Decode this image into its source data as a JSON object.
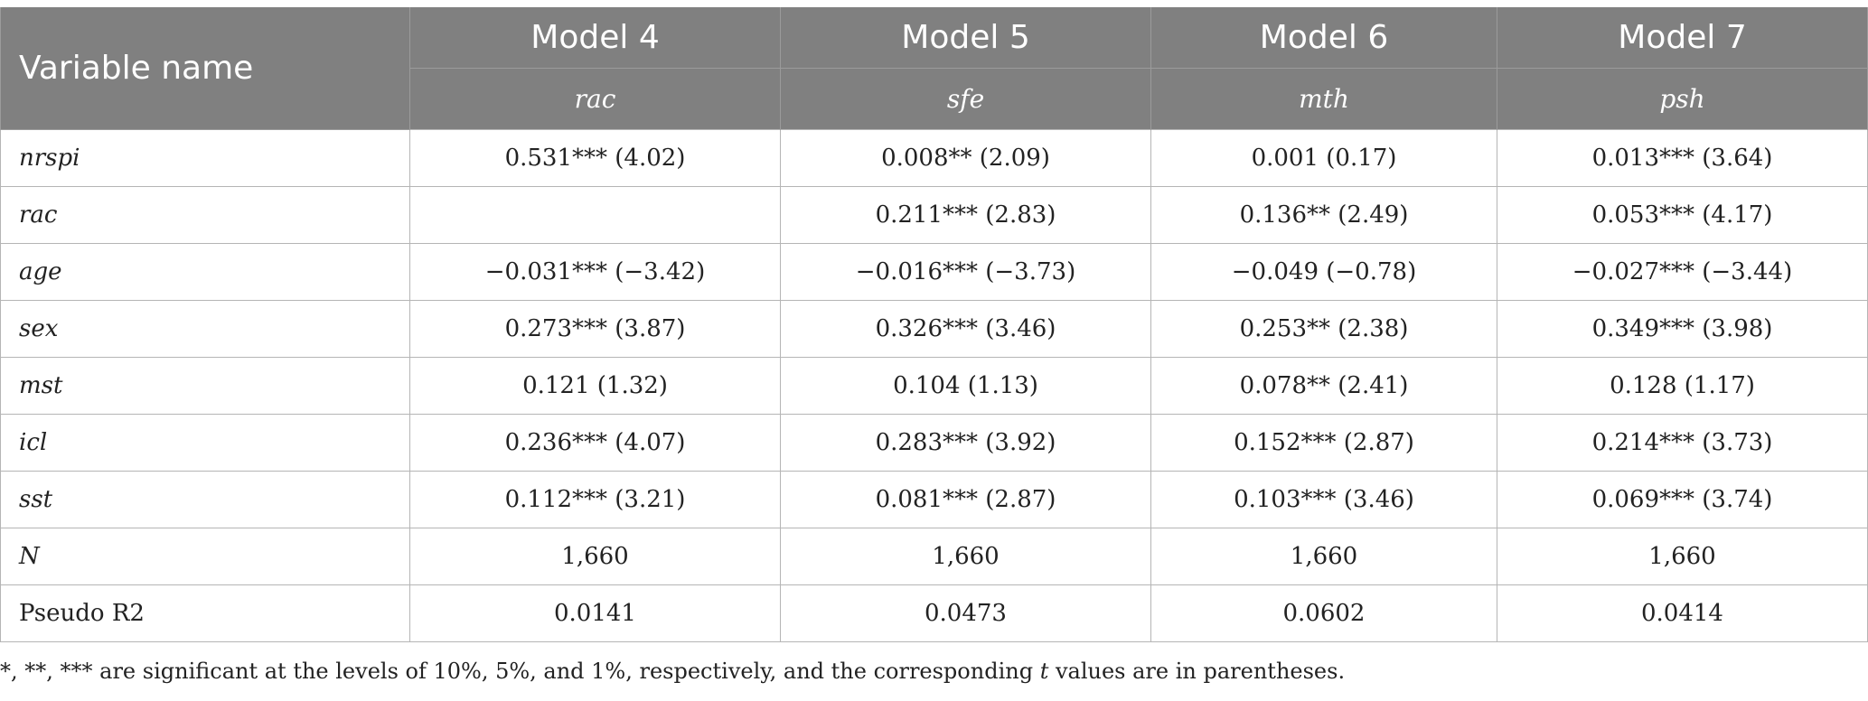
{
  "table": {
    "header": {
      "variable_label": "Variable name",
      "models": [
        "Model 4",
        "Model 5",
        "Model 6",
        "Model 7"
      ],
      "dependents": [
        "rac",
        "sfe",
        "mth",
        "psh"
      ]
    },
    "rows": [
      {
        "name": "nrspi",
        "italic": true,
        "cells": [
          "0.531*** (4.02)",
          "0.008** (2.09)",
          "0.001 (0.17)",
          "0.013*** (3.64)"
        ]
      },
      {
        "name": "rac",
        "italic": true,
        "cells": [
          "",
          "0.211*** (2.83)",
          "0.136** (2.49)",
          "0.053*** (4.17)"
        ]
      },
      {
        "name": "age",
        "italic": true,
        "cells": [
          "−0.031*** (−3.42)",
          "−0.016*** (−3.73)",
          "−0.049 (−0.78)",
          "−0.027*** (−3.44)"
        ]
      },
      {
        "name": "sex",
        "italic": true,
        "cells": [
          "0.273*** (3.87)",
          "0.326*** (3.46)",
          "0.253** (2.38)",
          "0.349*** (3.98)"
        ]
      },
      {
        "name": "mst",
        "italic": true,
        "cells": [
          "0.121 (1.32)",
          "0.104 (1.13)",
          "0.078** (2.41)",
          "0.128 (1.17)"
        ]
      },
      {
        "name": "icl",
        "italic": true,
        "cells": [
          "0.236*** (4.07)",
          "0.283*** (3.92)",
          "0.152*** (2.87)",
          "0.214*** (3.73)"
        ]
      },
      {
        "name": "sst",
        "italic": true,
        "cells": [
          "0.112*** (3.21)",
          "0.081*** (2.87)",
          "0.103*** (3.46)",
          "0.069*** (3.74)"
        ]
      },
      {
        "name": "N",
        "italic": true,
        "cells": [
          "1,660",
          "1,660",
          "1,660",
          "1,660"
        ]
      },
      {
        "name": "Pseudo R2",
        "italic": false,
        "cells": [
          "0.0141",
          "0.0473",
          "0.0602",
          "0.0414"
        ]
      }
    ]
  },
  "footnote": {
    "before": "*, **, *** are significant at the levels of 10%, 5%, and 1%, respectively, and the corresponding ",
    "italic": "t",
    "after": " values are in parentheses."
  }
}
